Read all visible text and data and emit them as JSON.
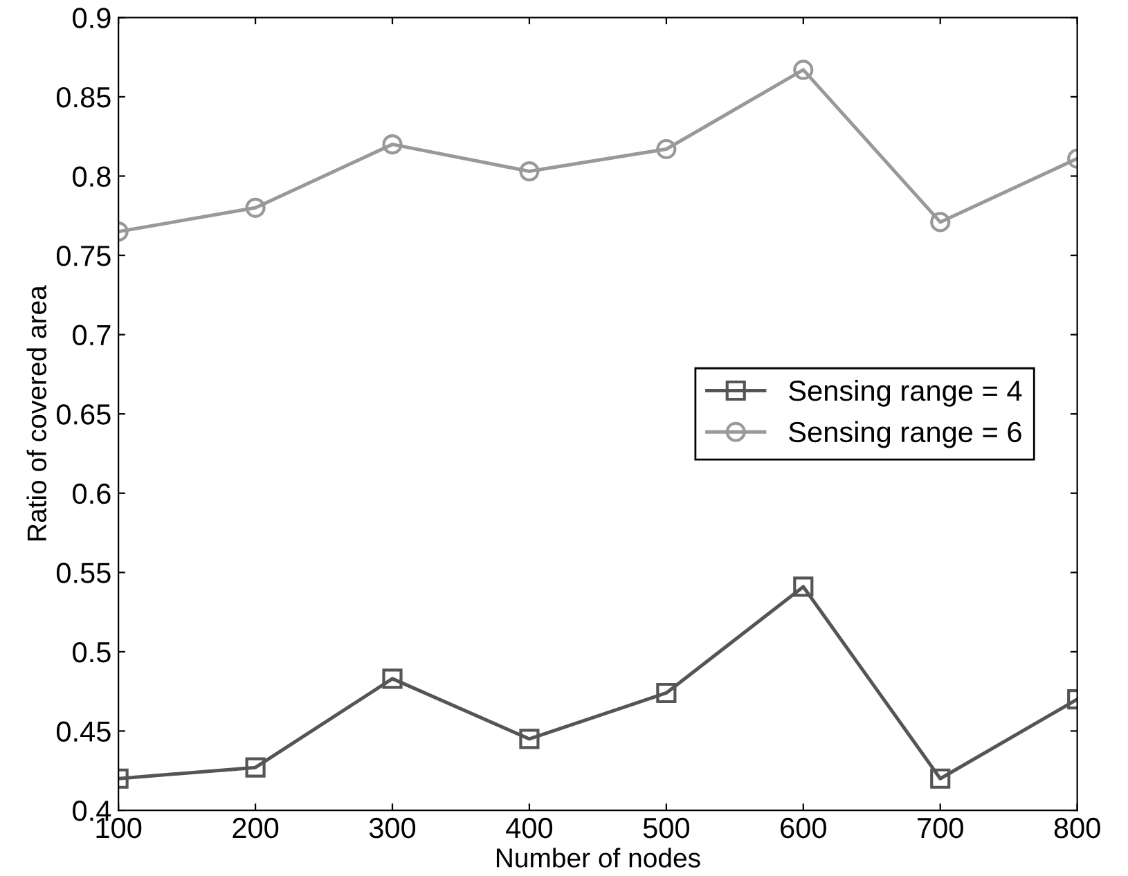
{
  "chart_data": {
    "type": "line",
    "xlabel": "Number of nodes",
    "ylabel": "Ratio of covered area",
    "x": [
      100,
      200,
      300,
      400,
      500,
      600,
      700,
      800
    ],
    "series": [
      {
        "name": "Sensing range = 4",
        "color": "#555555",
        "marker": "square",
        "values": [
          0.42,
          0.427,
          0.483,
          0.445,
          0.474,
          0.541,
          0.42,
          0.47
        ]
      },
      {
        "name": "Sensing range = 6",
        "color": "#999999",
        "marker": "circle",
        "values": [
          0.765,
          0.78,
          0.82,
          0.803,
          0.817,
          0.867,
          0.771,
          0.811
        ]
      }
    ],
    "xlim": [
      100,
      800
    ],
    "ylim": [
      0.4,
      0.9
    ],
    "xticks": [
      100,
      200,
      300,
      400,
      500,
      600,
      700,
      800
    ],
    "yticks": [
      0.4,
      0.45,
      0.5,
      0.55,
      0.6,
      0.65,
      0.7,
      0.75,
      0.8,
      0.85,
      0.9
    ],
    "grid": false,
    "legend": "center right",
    "line_style": "solid"
  }
}
